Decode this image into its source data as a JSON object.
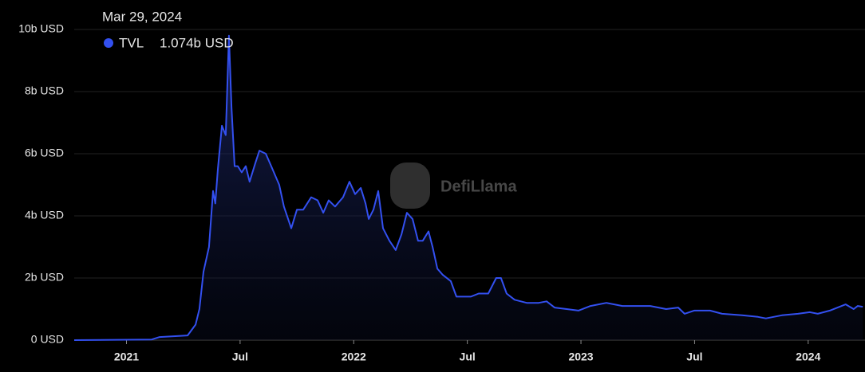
{
  "chart_data": {
    "type": "area",
    "tooltip_date": "Mar 29, 2024",
    "tooltip_value": "1.074b USD",
    "watermark": "DefiLlama",
    "grid": true,
    "xlim": [
      2020.77,
      2024.25
    ],
    "ylim": [
      0,
      10
    ],
    "xticks": [
      {
        "value": 2021,
        "label": "2021"
      },
      {
        "value": 2021.5,
        "label": "Jul"
      },
      {
        "value": 2022,
        "label": "2022"
      },
      {
        "value": 2022.5,
        "label": "Jul"
      },
      {
        "value": 2023,
        "label": "2023"
      },
      {
        "value": 2023.5,
        "label": "Jul"
      },
      {
        "value": 2024,
        "label": "2024"
      }
    ],
    "yticks": [
      {
        "value": 0,
        "label": "0 USD"
      },
      {
        "value": 2,
        "label": "2b USD"
      },
      {
        "value": 4,
        "label": "4b USD"
      },
      {
        "value": 6,
        "label": "6b USD"
      },
      {
        "value": 8,
        "label": "8b USD"
      },
      {
        "value": 10,
        "label": "10b USD"
      }
    ],
    "x": [
      2020.77,
      2021.111,
      2021.146,
      2021.269,
      2021.304,
      2021.321,
      2021.339,
      2021.363,
      2021.381,
      2021.391,
      2021.402,
      2021.42,
      2021.437,
      2021.451,
      2021.462,
      2021.476,
      2021.49,
      2021.507,
      2021.525,
      2021.542,
      2021.567,
      2021.585,
      2021.613,
      2021.637,
      2021.672,
      2021.693,
      2021.725,
      2021.75,
      2021.778,
      2021.813,
      2021.841,
      2021.866,
      2021.89,
      2021.918,
      2021.953,
      2021.981,
      2022.006,
      2022.031,
      2022.052,
      2022.066,
      2022.087,
      2022.108,
      2022.129,
      2022.157,
      2022.185,
      2022.21,
      2022.234,
      2022.259,
      2022.283,
      2022.304,
      2022.329,
      2022.347,
      2022.368,
      2022.392,
      2022.427,
      2022.452,
      2022.48,
      2022.515,
      2022.55,
      2022.592,
      2022.627,
      2022.648,
      2022.673,
      2022.708,
      2022.761,
      2022.814,
      2022.849,
      2022.884,
      2022.937,
      2022.989,
      2023.042,
      2023.112,
      2023.182,
      2023.252,
      2023.305,
      2023.375,
      2023.428,
      2023.456,
      2023.498,
      2023.568,
      2023.621,
      2023.709,
      2023.779,
      2023.814,
      2023.884,
      2023.955,
      2024.007,
      2024.042,
      2024.095,
      2024.165,
      2024.2,
      2024.218,
      2024.24
    ],
    "series": [
      {
        "name": "TVL",
        "color": "#3350f0",
        "values": [
          0,
          0.02,
          0.1,
          0.15,
          0.5,
          1.0,
          2.2,
          3.0,
          4.8,
          4.4,
          5.5,
          6.9,
          6.6,
          9.8,
          7.5,
          5.6,
          5.6,
          5.4,
          5.6,
          5.1,
          5.7,
          6.1,
          6.0,
          5.6,
          5.0,
          4.3,
          3.6,
          4.2,
          4.2,
          4.6,
          4.5,
          4.1,
          4.5,
          4.3,
          4.6,
          5.1,
          4.7,
          4.9,
          4.4,
          3.9,
          4.2,
          4.8,
          3.6,
          3.2,
          2.9,
          3.4,
          4.1,
          3.9,
          3.2,
          3.2,
          3.5,
          3.0,
          2.3,
          2.1,
          1.9,
          1.4,
          1.4,
          1.4,
          1.5,
          1.5,
          2.0,
          2.0,
          1.5,
          1.3,
          1.2,
          1.2,
          1.25,
          1.05,
          1.0,
          0.95,
          1.1,
          1.2,
          1.1,
          1.1,
          1.1,
          1.0,
          1.05,
          0.85,
          0.95,
          0.95,
          0.85,
          0.8,
          0.75,
          0.7,
          0.8,
          0.85,
          0.9,
          0.85,
          0.95,
          1.15,
          1.0,
          1.1,
          1.074
        ]
      }
    ]
  }
}
